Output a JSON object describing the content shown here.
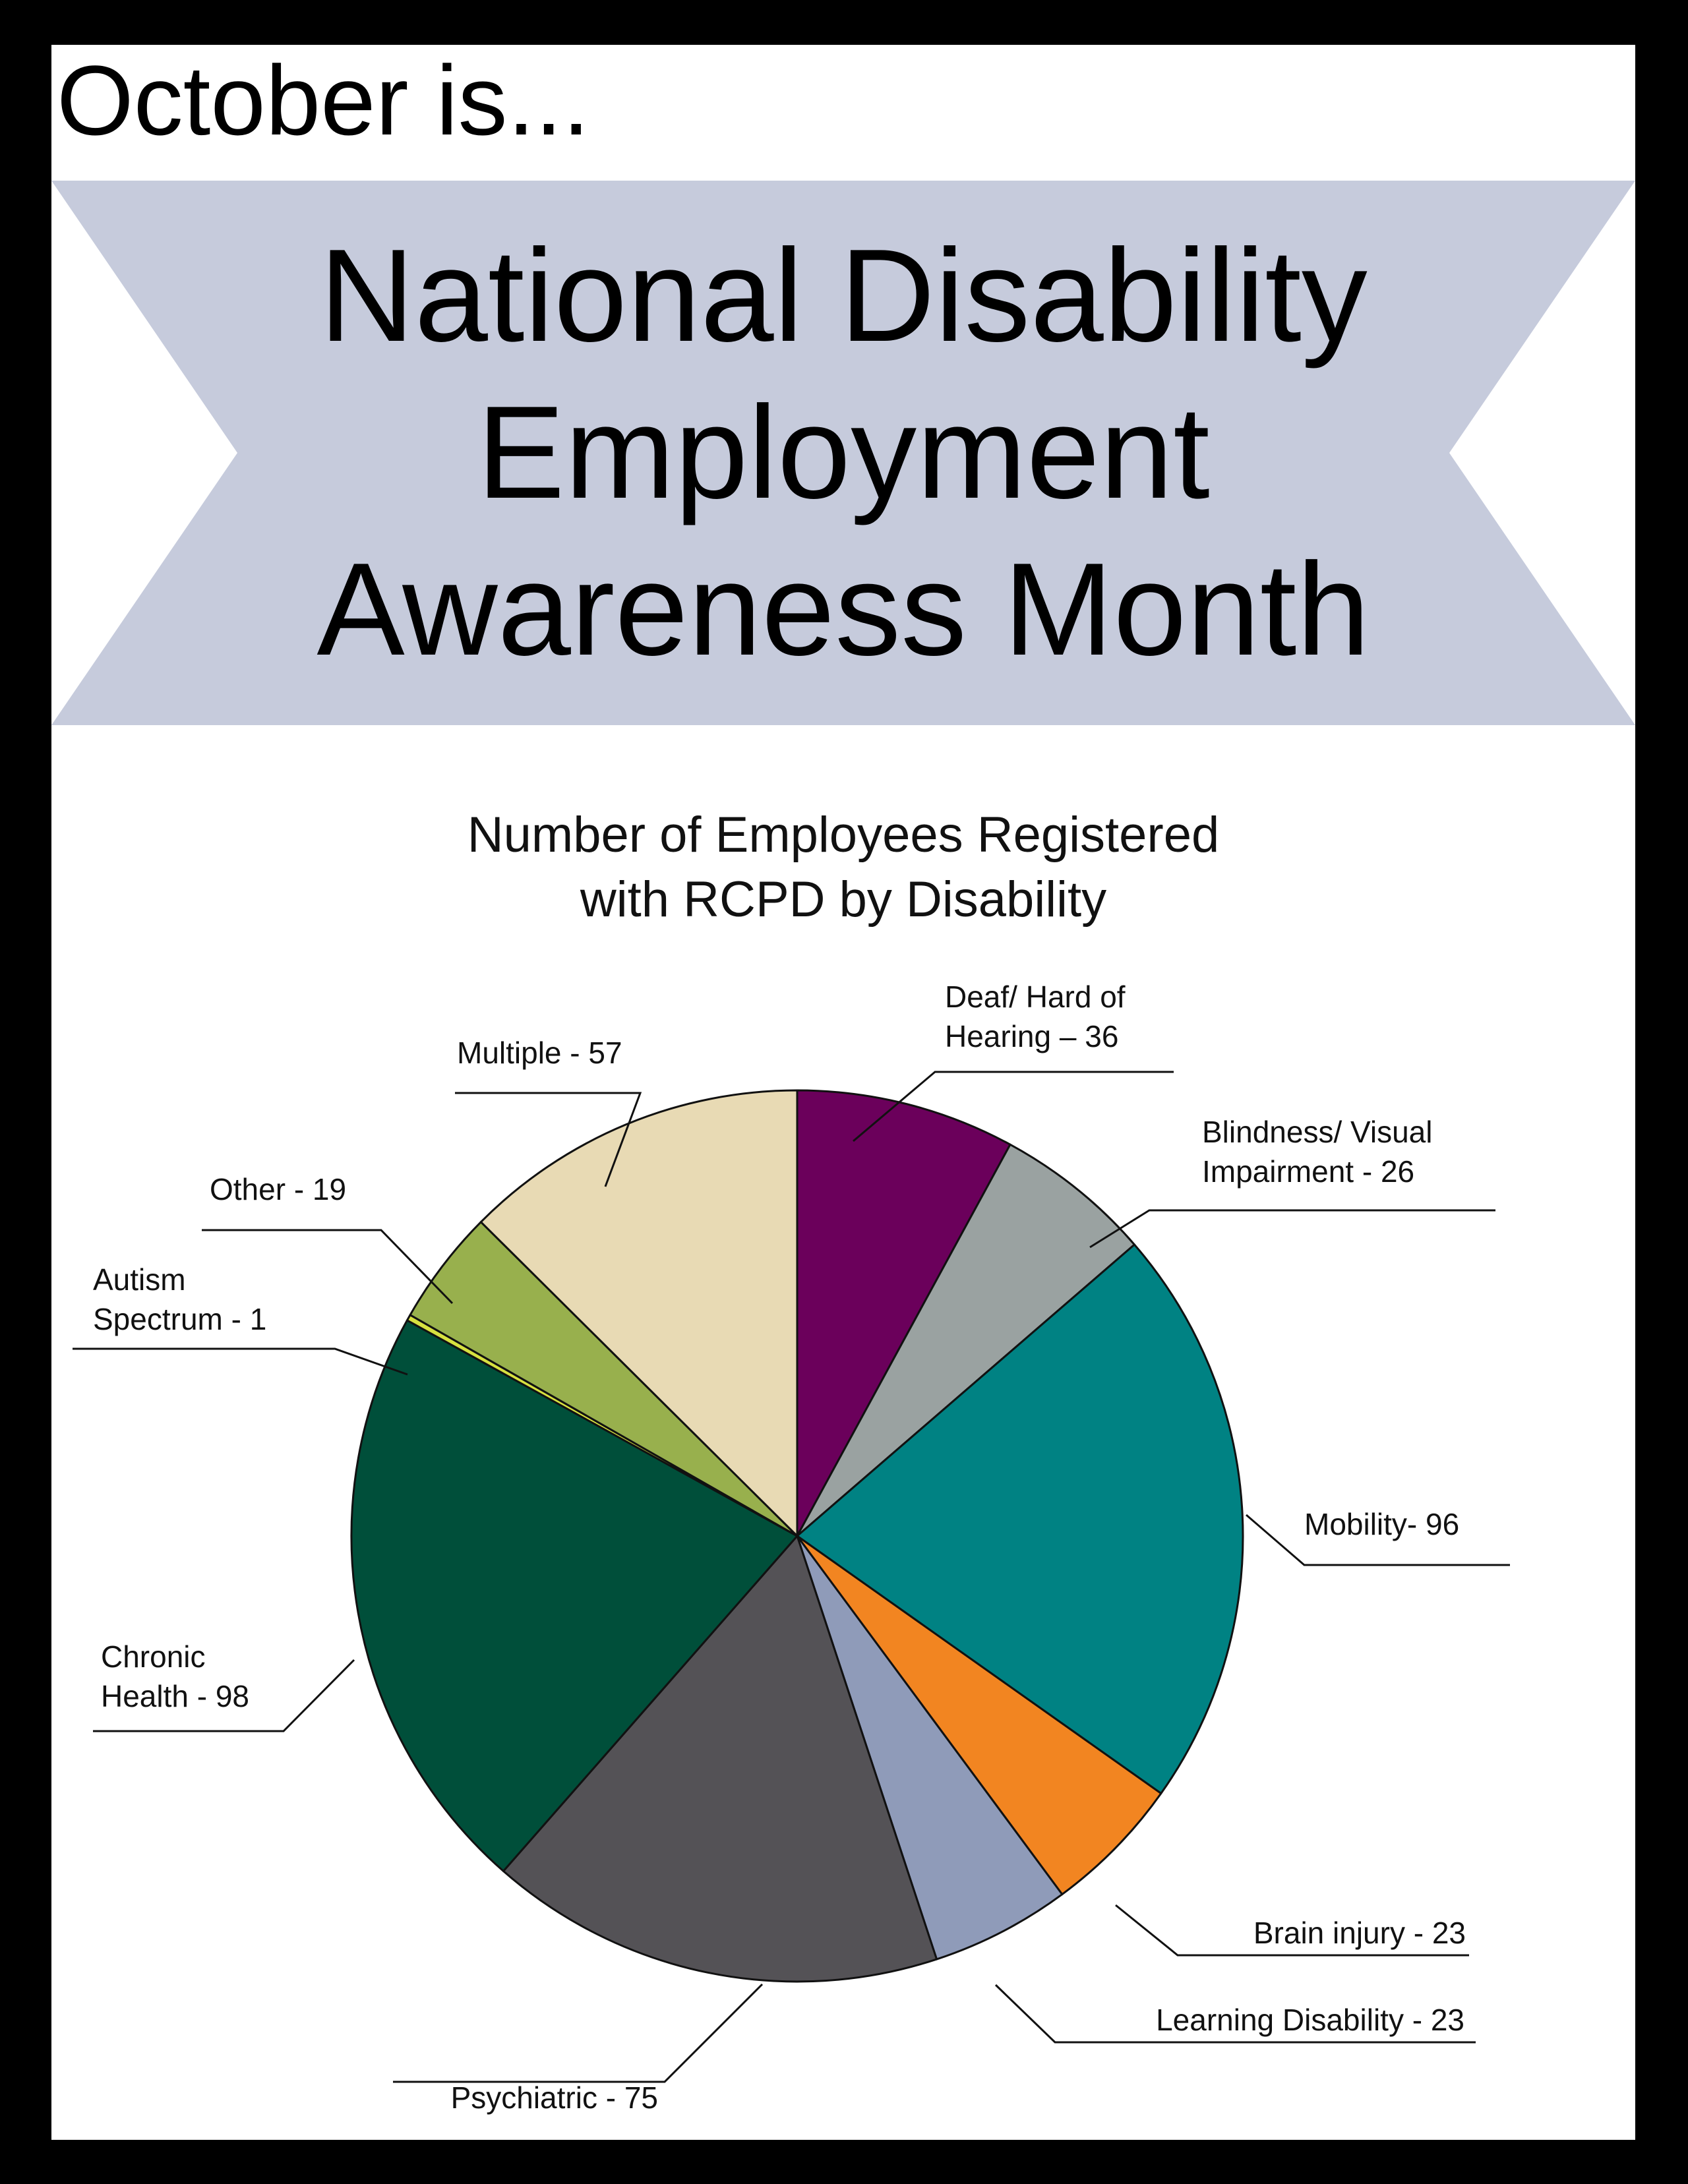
{
  "header": {
    "eyebrow": "October is...",
    "title_lines": [
      "National Disability",
      "Employment",
      "Awareness Month"
    ]
  },
  "colors": {
    "page_frame": "#000000",
    "banner": "#c6cbdc"
  },
  "chart_data": {
    "type": "pie",
    "title_lines": [
      "Number of Employees Registered",
      "with RCPD by Disability"
    ],
    "start_angle": "12 o'clock",
    "direction": "clockwise",
    "slices": [
      {
        "name": "Deaf/ Hard of Hearing",
        "value": 36,
        "color": "#6b005b",
        "label_lines": [
          "Deaf/ Hard of",
          "Hearing – 36"
        ]
      },
      {
        "name": "Blindness/ Visual Impairment",
        "value": 26,
        "color": "#9aa2a1",
        "label_lines": [
          "Blindness/ Visual",
          "Impairment - 26"
        ]
      },
      {
        "name": "Mobility",
        "value": 96,
        "color": "#008283",
        "label_lines": [
          "Mobility- 96"
        ]
      },
      {
        "name": "Brain injury",
        "value": 23,
        "color": "#f28521",
        "label_lines": [
          "Brain injury - 23"
        ]
      },
      {
        "name": "Learning Disability",
        "value": 23,
        "color": "#8f9bb9",
        "label_lines": [
          "Learning Disability - 23"
        ]
      },
      {
        "name": "Psychiatric",
        "value": 75,
        "color": "#545256",
        "label_lines": [
          "Psychiatric - 75"
        ]
      },
      {
        "name": "Chronic Health",
        "value": 98,
        "color": "#004f3a",
        "label_lines": [
          "Chronic",
          "Health - 98"
        ]
      },
      {
        "name": "Autism Spectrum",
        "value": 1,
        "color": "#d7e140",
        "label_lines": [
          "Autism",
          "Spectrum - 1"
        ]
      },
      {
        "name": "Other",
        "value": 19,
        "color": "#98b04d",
        "label_lines": [
          "Other - 19"
        ]
      },
      {
        "name": "Multiple",
        "value": 57,
        "color": "#e8dab4",
        "label_lines": [
          "Multiple - 57"
        ]
      }
    ]
  }
}
